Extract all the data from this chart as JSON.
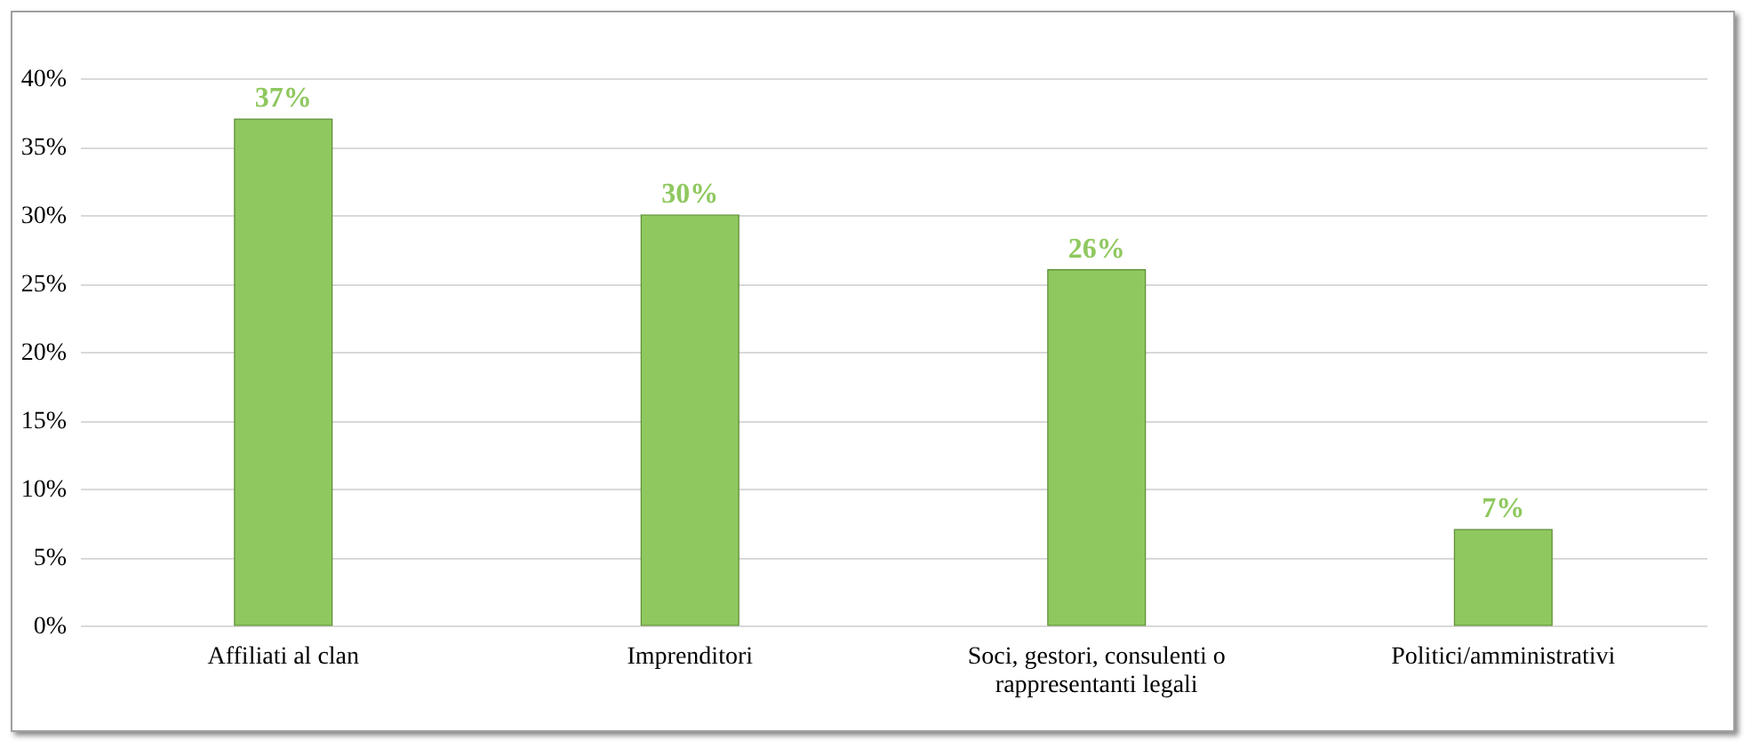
{
  "chart_data": {
    "type": "bar",
    "categories": [
      "Affiliati al clan",
      "Imprenditori",
      "Soci, gestori, consulenti o rappresentanti legali",
      "Politici/amministrativi"
    ],
    "values": [
      37,
      30,
      26,
      7
    ],
    "value_labels": [
      "37%",
      "30%",
      "26%",
      "7%"
    ],
    "color": "#8fc85f",
    "ylim": [
      0,
      40
    ],
    "yticks": [
      {
        "value": 0,
        "label": "0%"
      },
      {
        "value": 5,
        "label": "5%"
      },
      {
        "value": 10,
        "label": "10%"
      },
      {
        "value": 15,
        "label": "15%"
      },
      {
        "value": 20,
        "label": "20%"
      },
      {
        "value": 25,
        "label": "25%"
      },
      {
        "value": 30,
        "label": "30%"
      },
      {
        "value": 35,
        "label": "35%"
      },
      {
        "value": 40,
        "label": "40%"
      }
    ],
    "grid": "y"
  }
}
